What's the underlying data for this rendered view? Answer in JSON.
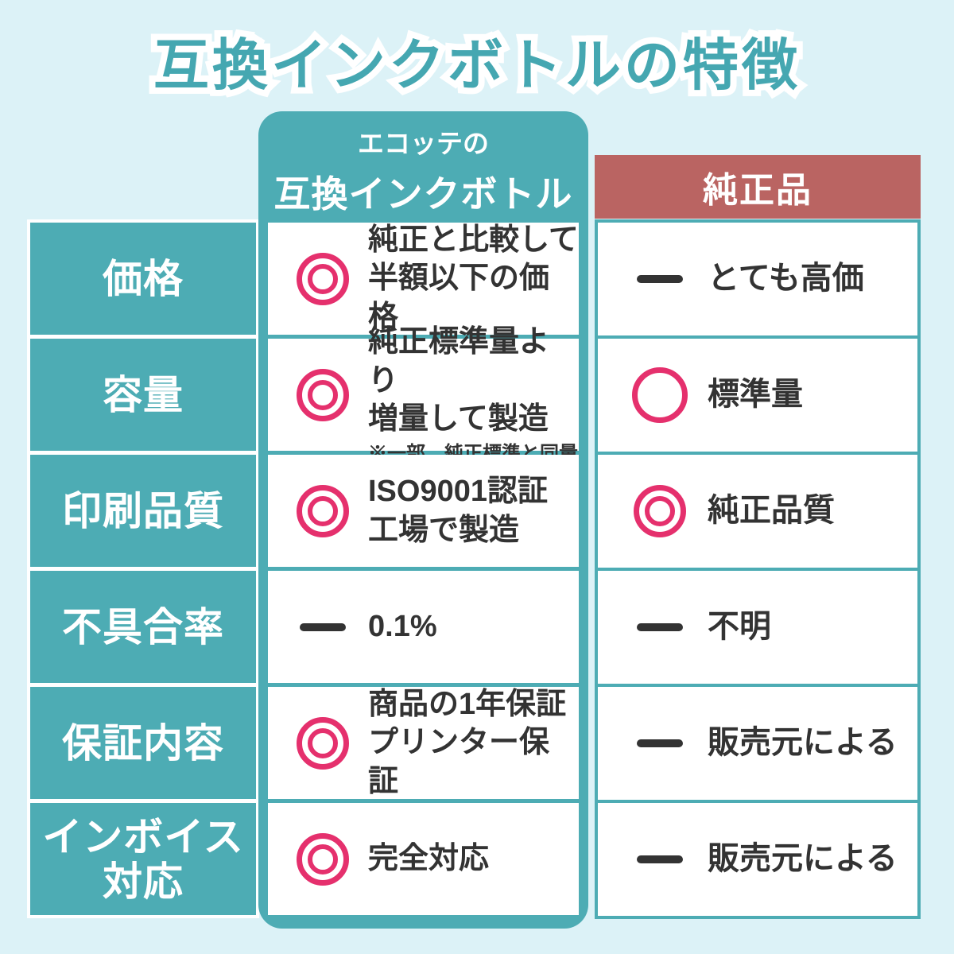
{
  "title": "互換インクボトルの特徴",
  "colors": {
    "background": "#DCF2F7",
    "teal": "#4DACB4",
    "title_teal": "#45A7B1",
    "genuine_red": "#BA6462",
    "accent_pink": "#E5306D",
    "text_ink": "#333333"
  },
  "columns": {
    "product": {
      "brand_line": "エコッテの",
      "name_line": "互換インクボトル"
    },
    "genuine": {
      "label": "純正品"
    }
  },
  "icon_legend": {
    "double-circle": "excellent (◎)",
    "circle": "good (○)",
    "dash": "neutral (—)"
  },
  "rows": [
    {
      "label": "価格",
      "product": {
        "icon": "double-circle",
        "text": "純正と比較して\n半額以下の価格"
      },
      "genuine": {
        "icon": "dash",
        "text": "とても高価"
      }
    },
    {
      "label": "容量",
      "product": {
        "icon": "double-circle",
        "text": "純正標準量より\n増量して製造",
        "note": "※一部、純正標準と同量"
      },
      "genuine": {
        "icon": "circle",
        "text": "標準量"
      }
    },
    {
      "label": "印刷品質",
      "product": {
        "icon": "double-circle",
        "text": "ISO9001認証\n工場で製造"
      },
      "genuine": {
        "icon": "double-circle",
        "text": "純正品質"
      }
    },
    {
      "label": "不具合率",
      "product": {
        "icon": "dash",
        "text": "0.1%"
      },
      "genuine": {
        "icon": "dash",
        "text": "不明"
      }
    },
    {
      "label": "保証内容",
      "product": {
        "icon": "double-circle",
        "text": "商品の1年保証\nプリンター保証"
      },
      "genuine": {
        "icon": "dash",
        "text": "販売元による"
      }
    },
    {
      "label": "インボイス\n対応",
      "product": {
        "icon": "double-circle",
        "text": "完全対応"
      },
      "genuine": {
        "icon": "dash",
        "text": "販売元による"
      }
    }
  ]
}
